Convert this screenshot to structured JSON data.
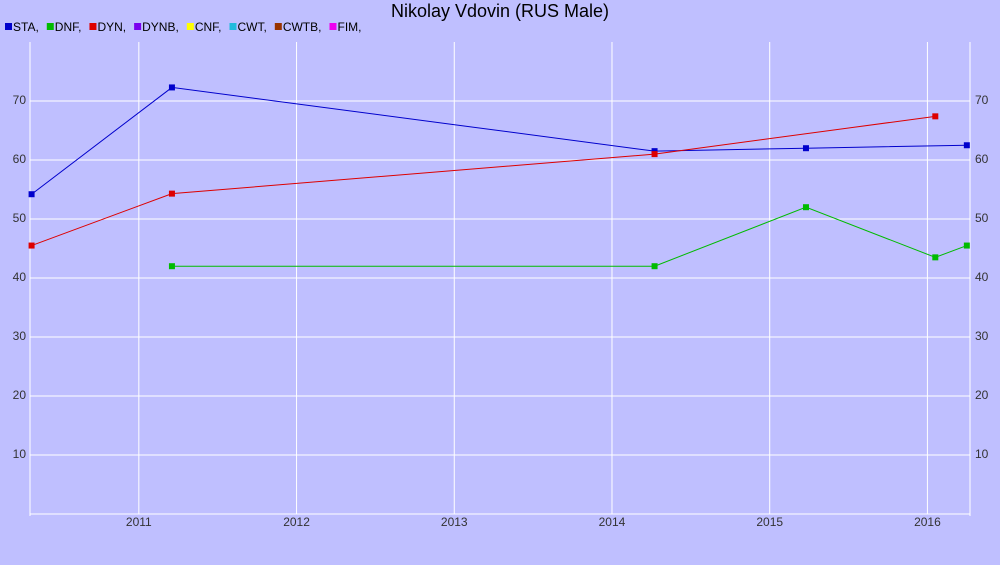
{
  "chart_data": {
    "type": "line",
    "title": "Nikolay Vdovin (RUS Male)",
    "xlim": [
      2010.31,
      2016.27
    ],
    "xticks": [
      2011,
      2012,
      2013,
      2014,
      2015,
      2016
    ],
    "ylim": [
      0,
      80
    ],
    "yticks": [
      10,
      20,
      30,
      40,
      50,
      60,
      70
    ],
    "grid": true,
    "series": [
      {
        "name": "STA,",
        "color": "#0000cc",
        "x": [
          2010.32,
          2011.21,
          2014.27,
          2015.23,
          2016.25
        ],
        "values": [
          54.2,
          72.3,
          61.5,
          62,
          62.5
        ]
      },
      {
        "name": "DNF,",
        "color": "#00bb00",
        "x": [
          2011.21,
          2014.27,
          2015.23,
          2016.05,
          2016.25
        ],
        "values": [
          42,
          42,
          52,
          43.5,
          45.5
        ]
      },
      {
        "name": "DYN,",
        "color": "#dd0000",
        "x": [
          2010.32,
          2011.21,
          2014.27,
          2016.05
        ],
        "values": [
          45.5,
          54.3,
          61,
          67.4
        ]
      },
      {
        "name": "DYNB,",
        "color": "#7a00ee",
        "x": [],
        "values": []
      },
      {
        "name": "CNF,",
        "color": "#ffff00",
        "x": [],
        "values": []
      },
      {
        "name": "CWT,",
        "color": "#22bbdd",
        "x": [],
        "values": []
      },
      {
        "name": "CWTB,",
        "color": "#993300",
        "x": [],
        "values": []
      },
      {
        "name": "FIM,",
        "color": "#ee00ee",
        "x": [],
        "values": []
      }
    ]
  }
}
